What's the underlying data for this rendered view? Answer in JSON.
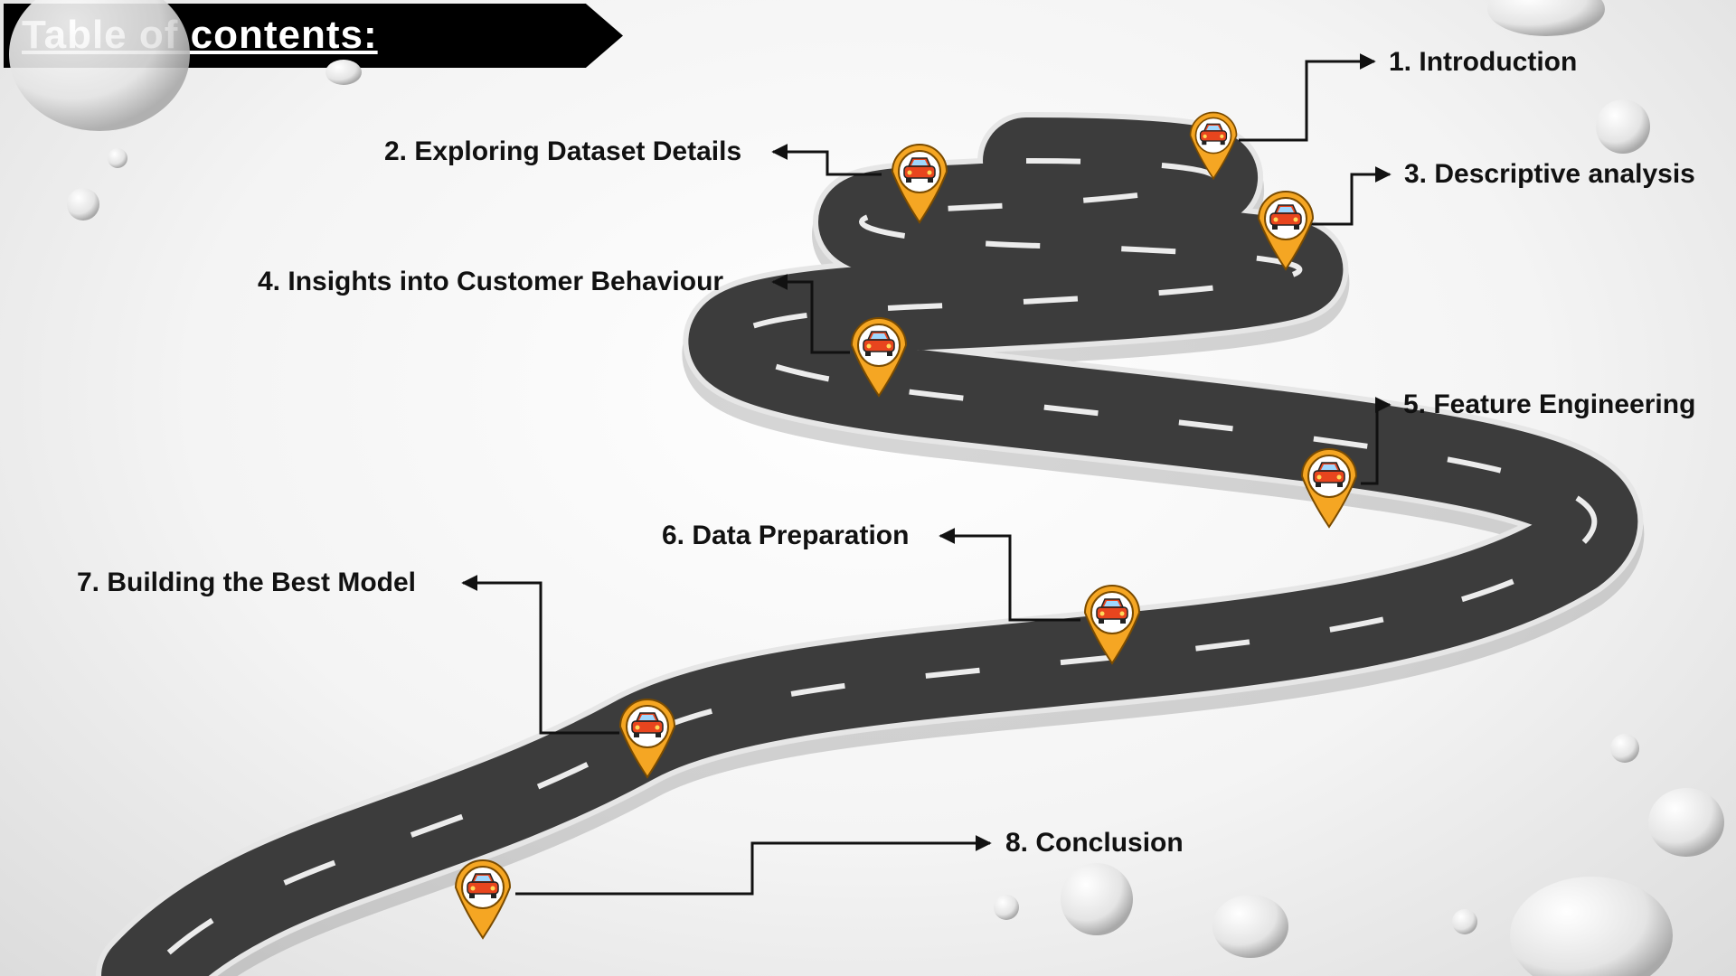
{
  "header": {
    "title": "Table of contents:"
  },
  "toc": [
    {
      "label": "1. Introduction"
    },
    {
      "label": "2. Exploring Dataset Details"
    },
    {
      "label": "3. Descriptive analysis"
    },
    {
      "label": "4. Insights into Customer Behaviour"
    },
    {
      "label": "5. Feature Engineering"
    },
    {
      "label": "6. Data Preparation"
    },
    {
      "label": "7. Building the Best Model"
    },
    {
      "label": "8. Conclusion"
    }
  ],
  "colors": {
    "road": "#3c3c3c",
    "road_edge": "#e6e6e6",
    "pin": "#f5a623",
    "car": "#e8451e",
    "banner": "#000000"
  },
  "icons": {
    "marker": "map-pin-car-icon"
  }
}
